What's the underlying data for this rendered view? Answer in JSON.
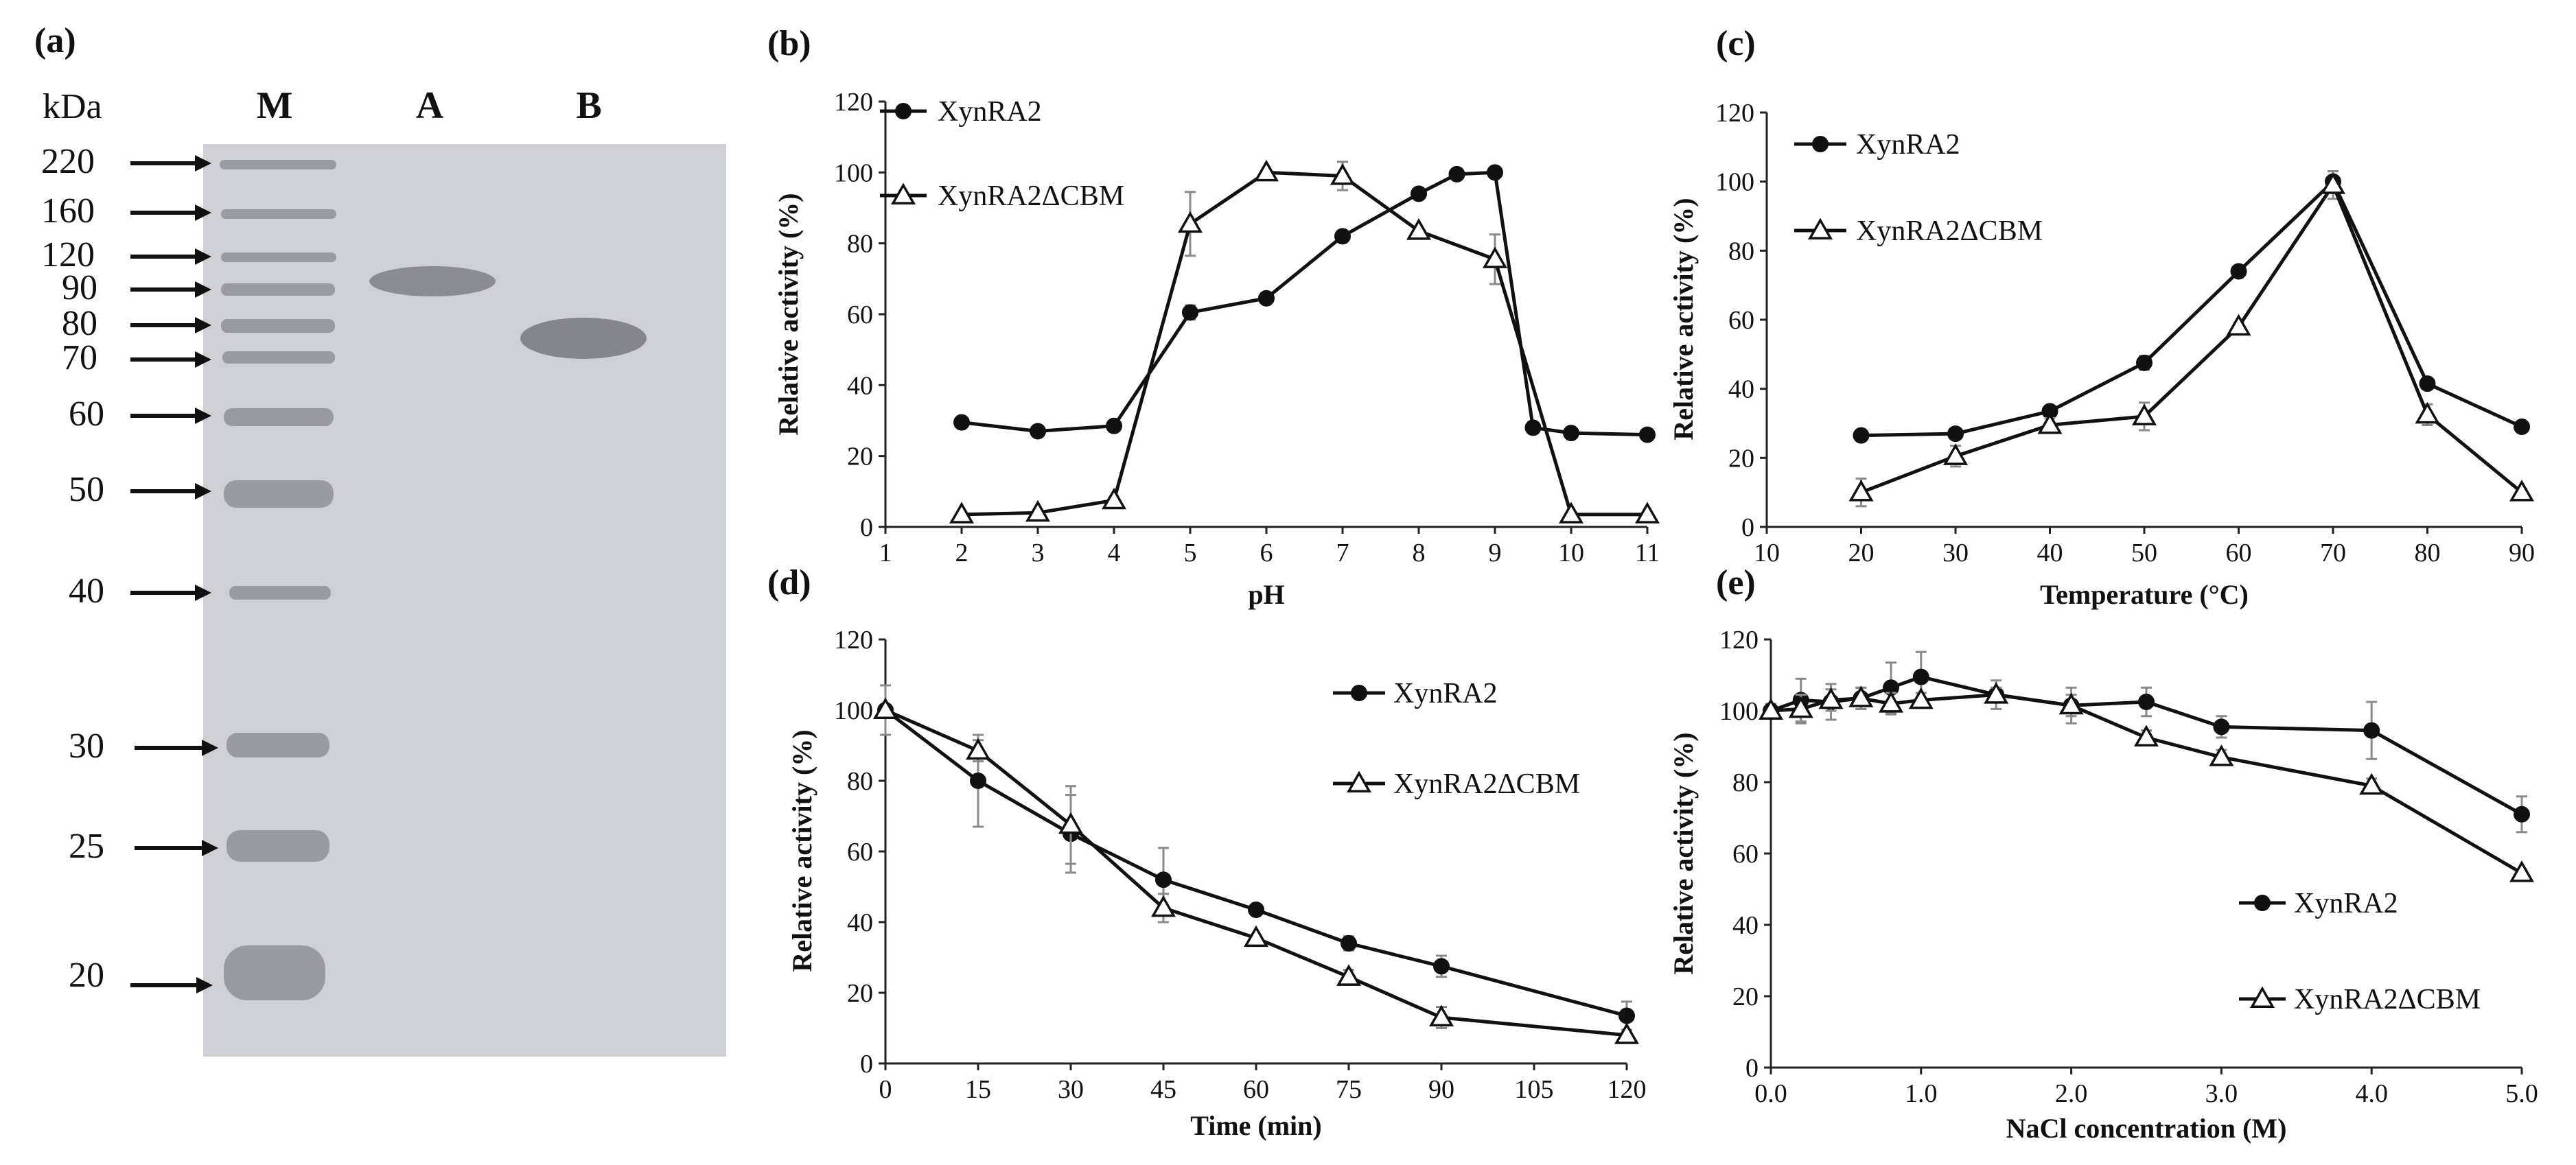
{
  "gel": {
    "panel_label": "(a)",
    "unit_label": "kDa",
    "lane_labels": [
      "M",
      "A",
      "B"
    ],
    "markers": [
      "220",
      "160",
      "120",
      "90",
      "80",
      "70",
      "60",
      "50",
      "40",
      "30",
      "25",
      "20"
    ],
    "colors": {
      "gel_background": "#cfcfd6",
      "band": "#8b8b93"
    }
  },
  "chart_data": [
    {
      "panel_label": "(b)",
      "type": "line",
      "xlabel": "pH",
      "ylabel": "Relative activity (%)",
      "xlim": [
        1,
        11
      ],
      "ylim": [
        0,
        120
      ],
      "xticks": [
        "1",
        "2",
        "3",
        "4",
        "5",
        "6",
        "7",
        "8",
        "9",
        "10",
        "11"
      ],
      "yticks": [
        "0",
        "20",
        "40",
        "60",
        "80",
        "100",
        "120"
      ],
      "legend_position": "top-left",
      "series": [
        {
          "name": "XynRA2",
          "marker": "circle",
          "x": [
            2,
            3,
            4,
            5,
            6,
            7,
            8,
            8.5,
            9,
            9.5,
            10,
            11
          ],
          "y": [
            29.5,
            27,
            28.5,
            60.5,
            64.5,
            82,
            94,
            99.5,
            100,
            28,
            26.5,
            26
          ],
          "err": [
            0,
            0,
            0,
            2,
            0,
            0,
            0,
            1,
            1,
            0,
            0,
            0
          ]
        },
        {
          "name": "XynRA2ΔCBM",
          "marker": "triangle",
          "x": [
            2,
            3,
            4,
            5,
            6,
            7,
            8,
            9,
            10,
            11
          ],
          "y": [
            3.5,
            4,
            7.5,
            85.5,
            100,
            99,
            83.5,
            75.5,
            3.5,
            3.5
          ],
          "err": [
            0,
            0,
            0,
            9,
            0,
            4,
            0,
            7,
            0,
            0
          ]
        }
      ]
    },
    {
      "panel_label": "(c)",
      "type": "line",
      "xlabel": "Temperature (°C)",
      "ylabel": "Relative activity (%)",
      "xlim": [
        10,
        90
      ],
      "ylim": [
        0,
        120
      ],
      "xticks": [
        "10",
        "20",
        "30",
        "40",
        "50",
        "60",
        "70",
        "80",
        "90"
      ],
      "yticks": [
        "0",
        "20",
        "40",
        "60",
        "80",
        "100",
        "120"
      ],
      "legend_position": "top-left",
      "series": [
        {
          "name": "XynRA2",
          "marker": "circle",
          "x": [
            20,
            30,
            40,
            50,
            60,
            70,
            80,
            90
          ],
          "y": [
            26.5,
            27,
            33.5,
            47.5,
            74,
            100,
            41.5,
            29
          ],
          "err": [
            0,
            0,
            1,
            2,
            1.5,
            3,
            1.5,
            1
          ]
        },
        {
          "name": "XynRA2ΔCBM",
          "marker": "triangle",
          "x": [
            20,
            30,
            40,
            50,
            60,
            70,
            80,
            90
          ],
          "y": [
            10,
            20.5,
            29.5,
            32,
            58,
            99,
            32.5,
            10
          ],
          "err": [
            4,
            3,
            2,
            4,
            1,
            4,
            3,
            1
          ]
        }
      ]
    },
    {
      "panel_label": "(d)",
      "type": "line",
      "xlabel": "Time (min)",
      "ylabel": "Relative activity (%)",
      "xlim": [
        0,
        120
      ],
      "ylim": [
        0,
        120
      ],
      "xticks": [
        "0",
        "15",
        "30",
        "45",
        "60",
        "75",
        "90",
        "105",
        "120"
      ],
      "yticks": [
        "0",
        "20",
        "40",
        "60",
        "80",
        "100",
        "120"
      ],
      "legend_position": "top-right",
      "series": [
        {
          "name": "XynRA2",
          "marker": "circle",
          "x": [
            0,
            15,
            30,
            45,
            60,
            75,
            90,
            120
          ],
          "y": [
            100,
            80,
            65,
            52,
            43.5,
            34,
            27.5,
            13.5
          ],
          "err": [
            7,
            13,
            11,
            9,
            0,
            2,
            3,
            4
          ]
        },
        {
          "name": "XynRA2ΔCBM",
          "marker": "triangle",
          "x": [
            0,
            15,
            30,
            45,
            60,
            75,
            90,
            120
          ],
          "y": [
            100,
            88.5,
            67.5,
            44,
            35.5,
            24.5,
            13,
            8
          ],
          "err": [
            0,
            3,
            11,
            4,
            0,
            2,
            3,
            0
          ]
        }
      ]
    },
    {
      "panel_label": "(e)",
      "type": "line",
      "xlabel": "NaCl concentration (M)",
      "ylabel": "Relative activity (%)",
      "xlim": [
        0,
        5
      ],
      "ylim": [
        0,
        120
      ],
      "xticks": [
        "0.0",
        "1.0",
        "2.0",
        "3.0",
        "4.0",
        "5.0"
      ],
      "yticks": [
        "0",
        "20",
        "40",
        "60",
        "80",
        "100",
        "120"
      ],
      "legend_position": "bottom-right",
      "series": [
        {
          "name": "XynRA2",
          "marker": "circle",
          "x": [
            0,
            0.2,
            0.4,
            0.6,
            0.8,
            1.0,
            1.5,
            2.0,
            2.5,
            3.0,
            4.0,
            5.0
          ],
          "y": [
            100,
            103,
            102.5,
            103.5,
            106.5,
            109.5,
            104.5,
            101.5,
            102.5,
            95.5,
            94.5,
            71
          ],
          "err": [
            2,
            6,
            5,
            3,
            7,
            7,
            4,
            5,
            4,
            3,
            8,
            5
          ]
        },
        {
          "name": "XynRA2ΔCBM",
          "marker": "triangle",
          "x": [
            0,
            0.2,
            0.4,
            0.6,
            0.8,
            1.0,
            1.5,
            2.0,
            2.5,
            3.0,
            4.0,
            5.0
          ],
          "y": [
            100,
            100.5,
            103,
            103.5,
            102,
            103,
            104.5,
            101.5,
            92.5,
            87,
            79,
            54.5
          ],
          "err": [
            0,
            4,
            3,
            3,
            3,
            2,
            2,
            3,
            2,
            2,
            2,
            1
          ]
        }
      ]
    }
  ]
}
